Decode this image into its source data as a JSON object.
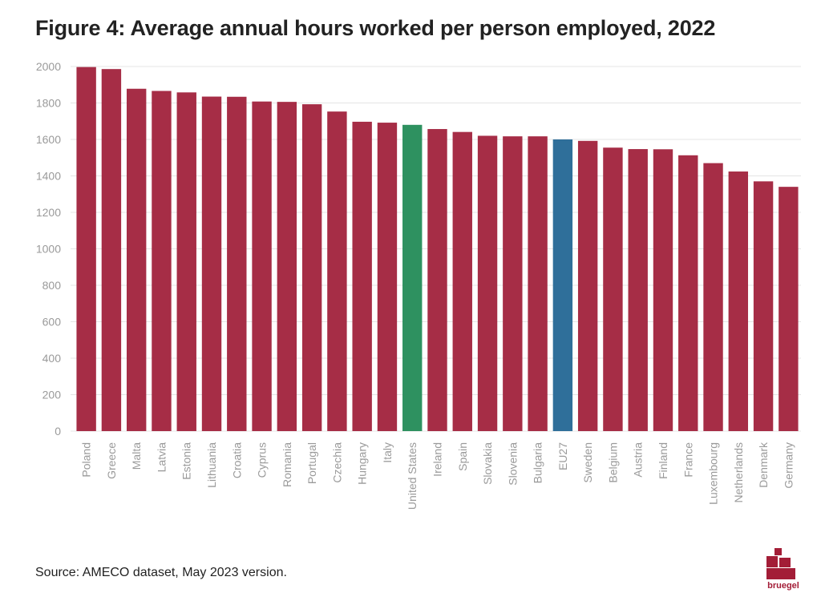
{
  "title": "Figure 4: Average annual hours worked per person employed, 2022",
  "source": "Source: AMECO dataset, May 2023 version.",
  "logo_text": "bruegel",
  "colors": {
    "default_bar": "#a62d46",
    "us_bar": "#2e9160",
    "eu_bar": "#2f6f9a",
    "grid": "#e4e4e4",
    "tick_text": "#9a9a9a"
  },
  "chart_data": {
    "type": "bar",
    "title": "Figure 4: Average annual hours worked per person employed, 2022",
    "xlabel": "",
    "ylabel": "",
    "ylim": [
      0,
      2000
    ],
    "yticks": [
      0,
      200,
      400,
      600,
      800,
      1000,
      1200,
      1400,
      1600,
      1800,
      2000
    ],
    "categories": [
      "Poland",
      "Greece",
      "Malta",
      "Latvia",
      "Estonia",
      "Lithuania",
      "Croatia",
      "Cyprus",
      "Romania",
      "Portugal",
      "Czechia",
      "Hungary",
      "Italy",
      "United States",
      "Ireland",
      "Spain",
      "Slovakia",
      "Slovenia",
      "Bulgaria",
      "EU27",
      "Sweden",
      "Belgium",
      "Austria",
      "Finland",
      "France",
      "Luxembourg",
      "Netherlands",
      "Denmark",
      "Germany"
    ],
    "values": [
      1997,
      1986,
      1878,
      1866,
      1858,
      1835,
      1834,
      1808,
      1806,
      1793,
      1753,
      1697,
      1692,
      1680,
      1657,
      1641,
      1620,
      1617,
      1617,
      1600,
      1592,
      1555,
      1547,
      1546,
      1513,
      1470,
      1424,
      1370,
      1340
    ],
    "highlights": {
      "United States": "us_bar",
      "EU27": "eu_bar"
    },
    "grid": true,
    "legend": "none"
  }
}
